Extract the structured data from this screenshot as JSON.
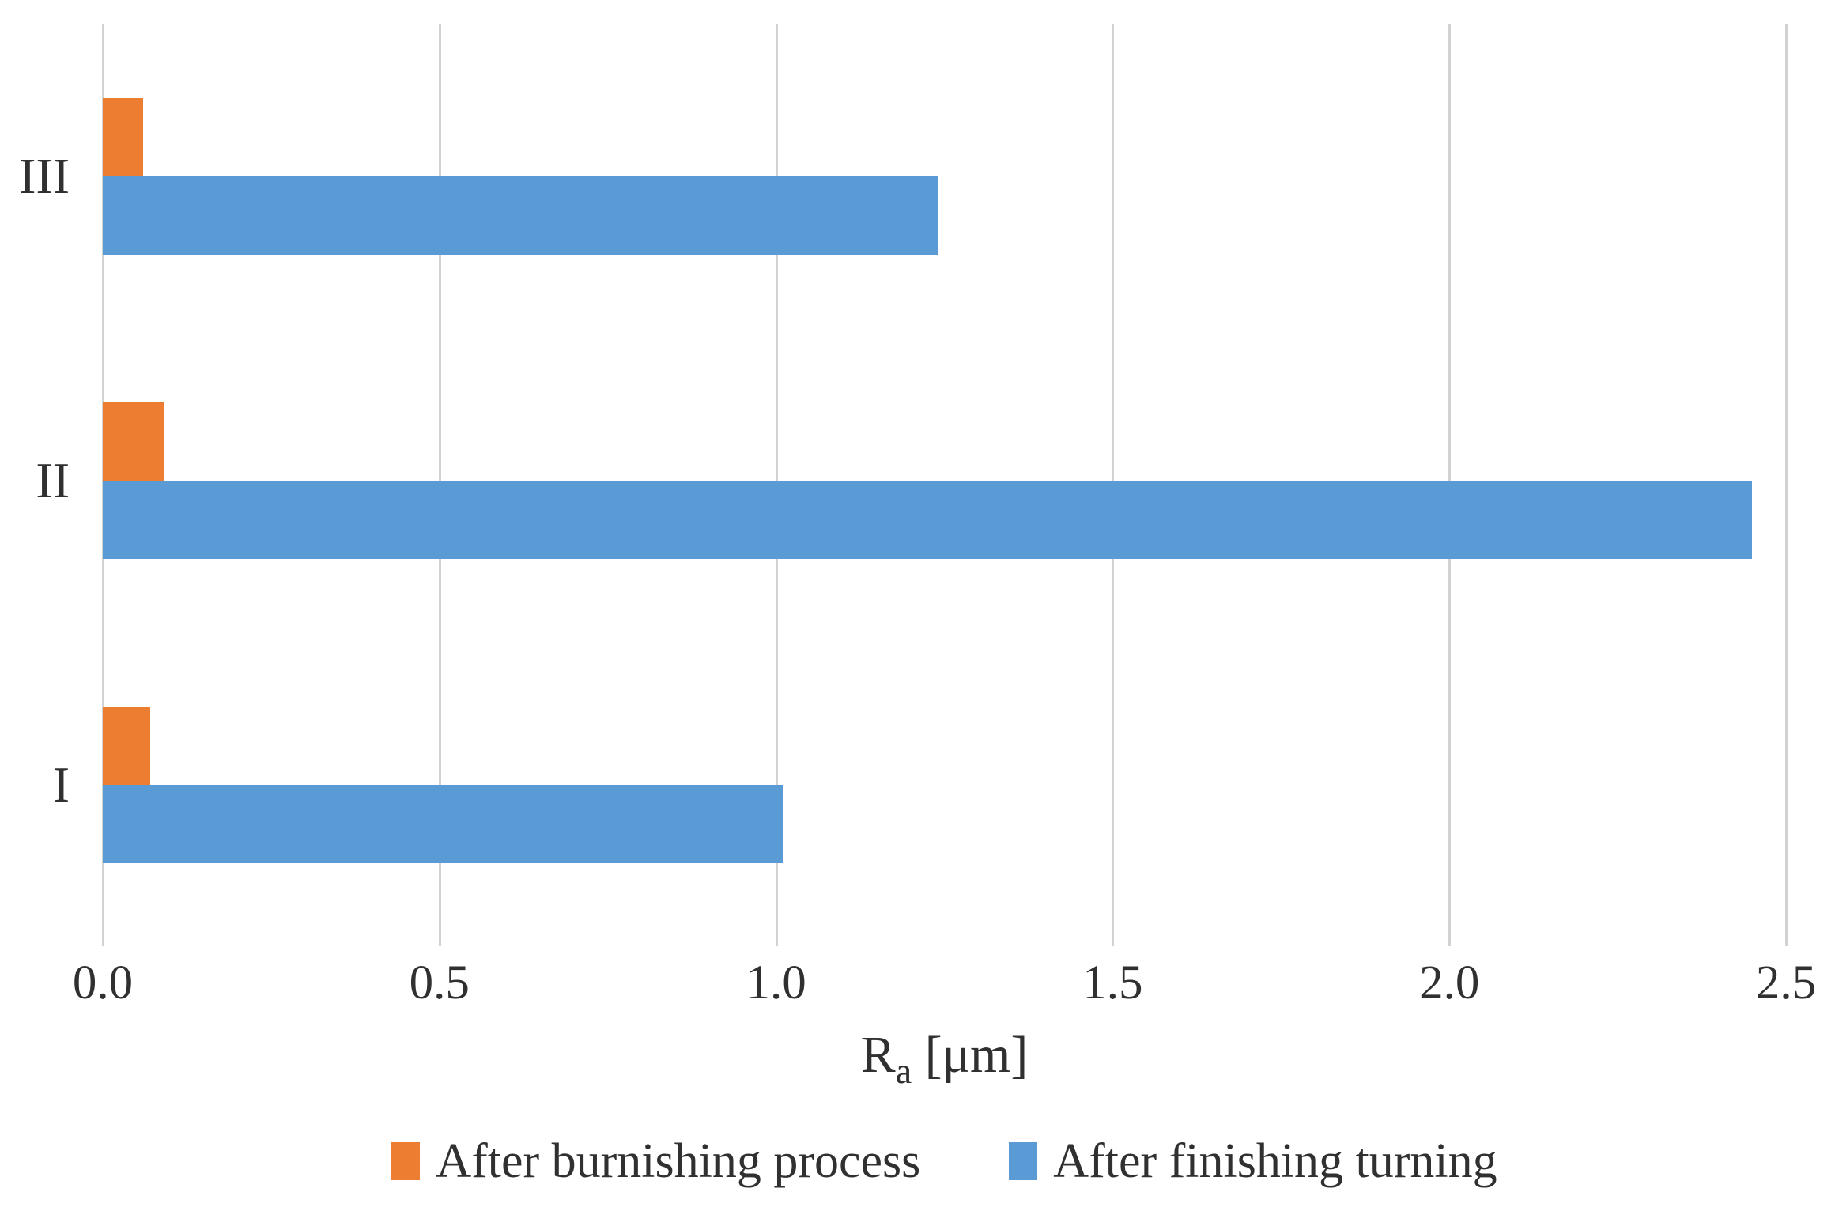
{
  "chart_data": {
    "type": "bar",
    "orientation": "horizontal",
    "title": "",
    "categories": [
      "I",
      "II",
      "III"
    ],
    "series": [
      {
        "name": "After burnishing process",
        "color": "#ED7D31",
        "values": [
          0.07,
          0.09,
          0.06
        ]
      },
      {
        "name": "After finishing turning",
        "color": "#5B9BD5",
        "values": [
          1.01,
          2.45,
          1.24
        ]
      }
    ],
    "xlabel": {
      "base": "R",
      "sub": "a",
      "unit": " [μm]"
    },
    "xlim": [
      0,
      2.5
    ],
    "xticks": [
      0,
      0.5,
      1,
      1.5,
      2,
      2.5
    ],
    "xtick_labels": [
      "0.0",
      "0.5",
      "1.0",
      "1.5",
      "2.0",
      "2.5"
    ],
    "grid": true,
    "gridline_color": "#D2D2D2",
    "text_color": "#303030",
    "background_color": "#FFFFFF",
    "legend_position": "bottom",
    "category_order_on_screen_top_to_bottom": [
      "III",
      "II",
      "I"
    ]
  }
}
